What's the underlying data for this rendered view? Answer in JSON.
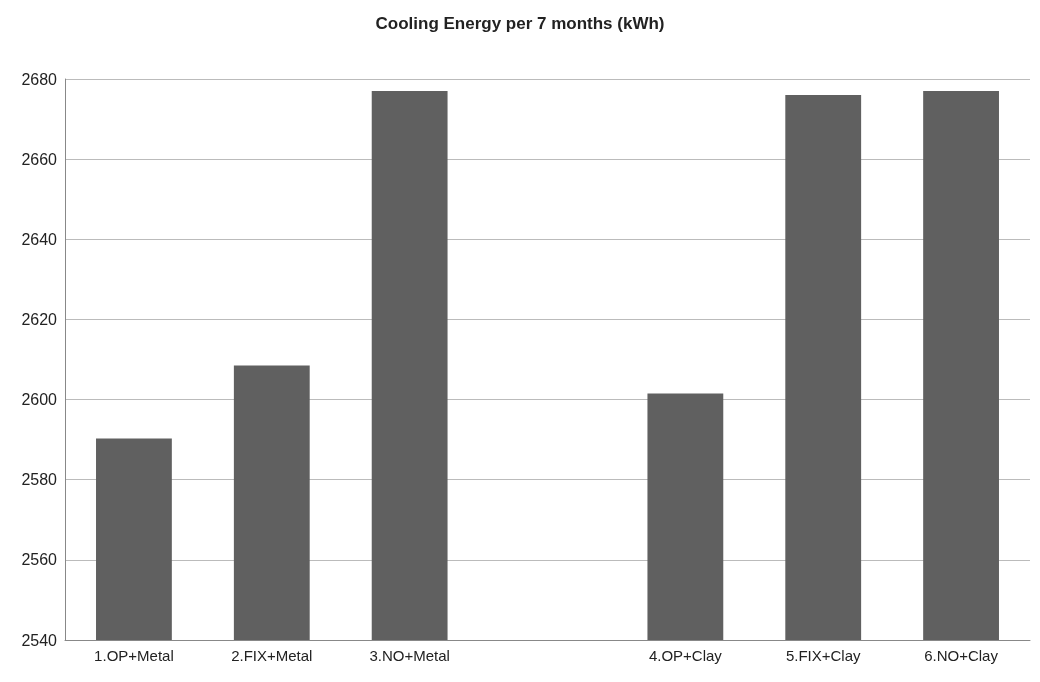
{
  "chart_data": {
    "type": "bar",
    "title": "Cooling Energy per 7 months (kWh)",
    "categories": [
      "1.OP+Metal",
      "2.FIX+Metal",
      "3.NO+Metal",
      null,
      "4.OP+Clay",
      "5.FIX+Clay",
      "6.NO+Clay"
    ],
    "values": [
      2590.3,
      2608.5,
      2677,
      null,
      2601.5,
      2676,
      2677
    ],
    "color": "#606060",
    "ylim": [
      2540,
      2680
    ],
    "yticks": [
      2540,
      2560,
      2580,
      2600,
      2620,
      2640,
      2660,
      2680
    ],
    "grid": "y"
  }
}
